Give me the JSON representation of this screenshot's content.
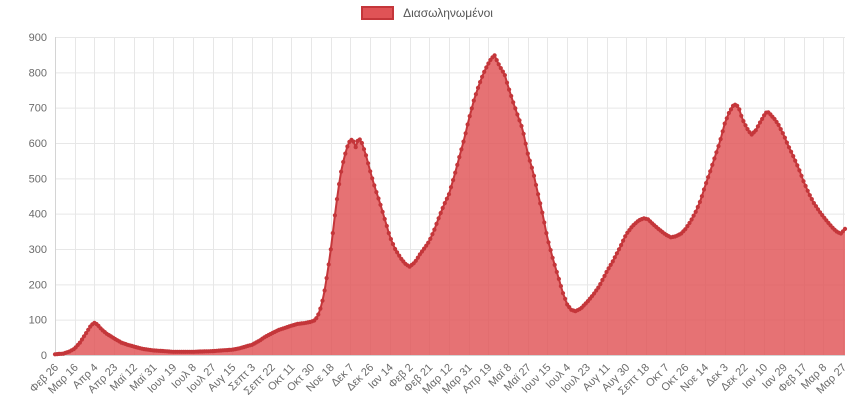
{
  "chart_data": {
    "type": "area",
    "title": "",
    "legend_position": "top",
    "grid": true,
    "ylim": [
      0,
      900
    ],
    "y_ticks": [
      0,
      100,
      200,
      300,
      400,
      500,
      600,
      700,
      800,
      900
    ],
    "x_tick_interval_days": 19,
    "x_domain_days": [
      0,
      762
    ],
    "x_tick_labels": [
      "Φεβ 26",
      "Μαρ 16",
      "Απρ 4",
      "Απρ 23",
      "Μαϊ 12",
      "Μαϊ 31",
      "Ιουν 19",
      "Ιουλ 8",
      "Ιουλ 27",
      "Αυγ 15",
      "Σεπτ 3",
      "Σεπτ 22",
      "Οκτ 11",
      "Οκτ 30",
      "Νοε 18",
      "Δεκ 7",
      "Δεκ 26",
      "Ιαν 14",
      "Φεβ 2",
      "Φεβ 21",
      "Μαρ 12",
      "Μαρ 31",
      "Απρ 19",
      "Μαϊ 8",
      "Μαϊ 27",
      "Ιουν 15",
      "Ιουλ 4",
      "Ιουλ 23",
      "Αυγ 11",
      "Αυγ 30",
      "Σεπτ 18",
      "Οκτ 7",
      "Οκτ 26",
      "Νοε 14",
      "Δεκ 3",
      "Δεκ 22",
      "Ιαν 10",
      "Ιαν 29",
      "Φεβ 17",
      "Μαρ 8",
      "Μαρ 27"
    ],
    "series": [
      {
        "name": "Διασωληνωμένοι",
        "anchors": [
          [
            0,
            2
          ],
          [
            8,
            4
          ],
          [
            14,
            10
          ],
          [
            19,
            18
          ],
          [
            24,
            35
          ],
          [
            30,
            62
          ],
          [
            35,
            85
          ],
          [
            38,
            91
          ],
          [
            41,
            86
          ],
          [
            45,
            72
          ],
          [
            50,
            60
          ],
          [
            57,
            47
          ],
          [
            64,
            35
          ],
          [
            70,
            29
          ],
          [
            76,
            24
          ],
          [
            85,
            17
          ],
          [
            95,
            13
          ],
          [
            105,
            11
          ],
          [
            114,
            9
          ],
          [
            124,
            9
          ],
          [
            133,
            9
          ],
          [
            142,
            10
          ],
          [
            152,
            11
          ],
          [
            161,
            13
          ],
          [
            171,
            15
          ],
          [
            178,
            19
          ],
          [
            185,
            25
          ],
          [
            190,
            29
          ],
          [
            197,
            40
          ],
          [
            203,
            52
          ],
          [
            209,
            61
          ],
          [
            215,
            70
          ],
          [
            221,
            76
          ],
          [
            228,
            83
          ],
          [
            234,
            88
          ],
          [
            240,
            90
          ],
          [
            247,
            94
          ],
          [
            251,
            99
          ],
          [
            255,
            120
          ],
          [
            259,
            165
          ],
          [
            263,
            235
          ],
          [
            267,
            320
          ],
          [
            271,
            420
          ],
          [
            275,
            505
          ],
          [
            279,
            560
          ],
          [
            283,
            600
          ],
          [
            287,
            612
          ],
          [
            290,
            588
          ],
          [
            293,
            615
          ],
          [
            296,
            600
          ],
          [
            300,
            565
          ],
          [
            304,
            520
          ],
          [
            309,
            470
          ],
          [
            314,
            425
          ],
          [
            319,
            375
          ],
          [
            323,
            335
          ],
          [
            328,
            300
          ],
          [
            334,
            272
          ],
          [
            338,
            258
          ],
          [
            342,
            250
          ],
          [
            347,
            262
          ],
          [
            352,
            285
          ],
          [
            357,
            305
          ],
          [
            361,
            322
          ],
          [
            366,
            355
          ],
          [
            371,
            395
          ],
          [
            376,
            430
          ],
          [
            380,
            455
          ],
          [
            385,
            505
          ],
          [
            390,
            560
          ],
          [
            395,
            615
          ],
          [
            399,
            665
          ],
          [
            404,
            720
          ],
          [
            409,
            765
          ],
          [
            413,
            795
          ],
          [
            417,
            820
          ],
          [
            421,
            840
          ],
          [
            424,
            848
          ],
          [
            427,
            828
          ],
          [
            430,
            812
          ],
          [
            434,
            792
          ],
          [
            437,
            760
          ],
          [
            442,
            715
          ],
          [
            447,
            672
          ],
          [
            451,
            640
          ],
          [
            456,
            570
          ],
          [
            461,
            520
          ],
          [
            466,
            455
          ],
          [
            471,
            390
          ],
          [
            475,
            330
          ],
          [
            480,
            275
          ],
          [
            485,
            225
          ],
          [
            490,
            175
          ],
          [
            494,
            143
          ],
          [
            498,
            128
          ],
          [
            502,
            124
          ],
          [
            507,
            131
          ],
          [
            513,
            149
          ],
          [
            519,
            170
          ],
          [
            525,
            195
          ],
          [
            532,
            235
          ],
          [
            538,
            265
          ],
          [
            545,
            305
          ],
          [
            551,
            342
          ],
          [
            557,
            365
          ],
          [
            563,
            381
          ],
          [
            568,
            387
          ],
          [
            572,
            384
          ],
          [
            577,
            370
          ],
          [
            582,
            357
          ],
          [
            589,
            341
          ],
          [
            594,
            333
          ],
          [
            599,
            336
          ],
          [
            604,
            344
          ],
          [
            608,
            356
          ],
          [
            613,
            378
          ],
          [
            618,
            405
          ],
          [
            623,
            440
          ],
          [
            627,
            478
          ],
          [
            632,
            520
          ],
          [
            637,
            565
          ],
          [
            641,
            600
          ],
          [
            646,
            655
          ],
          [
            650,
            685
          ],
          [
            654,
            705
          ],
          [
            657,
            710
          ],
          [
            660,
            695
          ],
          [
            663,
            668
          ],
          [
            666,
            650
          ],
          [
            669,
            634
          ],
          [
            672,
            624
          ],
          [
            676,
            636
          ],
          [
            680,
            658
          ],
          [
            684,
            678
          ],
          [
            687,
            690
          ],
          [
            690,
            681
          ],
          [
            694,
            668
          ],
          [
            698,
            651
          ],
          [
            703,
            622
          ],
          [
            707,
            594
          ],
          [
            712,
            563
          ],
          [
            717,
            530
          ],
          [
            722,
            492
          ],
          [
            727,
            458
          ],
          [
            732,
            430
          ],
          [
            737,
            408
          ],
          [
            741,
            392
          ],
          [
            746,
            374
          ],
          [
            751,
            357
          ],
          [
            755,
            347
          ],
          [
            758,
            344
          ],
          [
            760,
            350
          ],
          [
            762,
            357
          ]
        ]
      }
    ],
    "colors": {
      "area_fill": "#e05356",
      "area_fill_opacity": 0.82,
      "line": "#c4363a",
      "point": "#c4363a",
      "grid": "#e7e7e7",
      "axis_line": "#d4d4d4",
      "tick_text": "#6b6b6b",
      "legend_text": "#555555",
      "background": "#ffffff"
    }
  }
}
